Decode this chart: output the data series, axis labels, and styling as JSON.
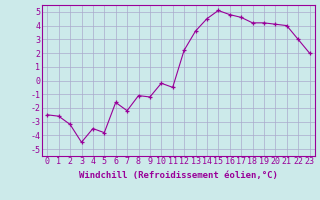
{
  "x": [
    0,
    1,
    2,
    3,
    4,
    5,
    6,
    7,
    8,
    9,
    10,
    11,
    12,
    13,
    14,
    15,
    16,
    17,
    18,
    19,
    20,
    21,
    22,
    23
  ],
  "y": [
    -2.5,
    -2.6,
    -3.2,
    -4.5,
    -3.5,
    -3.8,
    -1.6,
    -2.2,
    -1.1,
    -1.2,
    -0.2,
    -0.5,
    2.2,
    3.6,
    4.5,
    5.1,
    4.8,
    4.6,
    4.2,
    4.2,
    4.1,
    4.0,
    3.0,
    2.0
  ],
  "xlabel": "Windchill (Refroidissement éolien,°C)",
  "xlim": [
    -0.5,
    23.5
  ],
  "ylim": [
    -5.5,
    5.5
  ],
  "yticks": [
    -5,
    -4,
    -3,
    -2,
    -1,
    0,
    1,
    2,
    3,
    4,
    5
  ],
  "xticks": [
    0,
    1,
    2,
    3,
    4,
    5,
    6,
    7,
    8,
    9,
    10,
    11,
    12,
    13,
    14,
    15,
    16,
    17,
    18,
    19,
    20,
    21,
    22,
    23
  ],
  "line_color": "#990099",
  "marker_color": "#990099",
  "bg_color": "#cceaea",
  "grid_color": "#aaaacc",
  "font_color": "#990099",
  "xlabel_fontsize": 6.5,
  "tick_fontsize": 6.0
}
